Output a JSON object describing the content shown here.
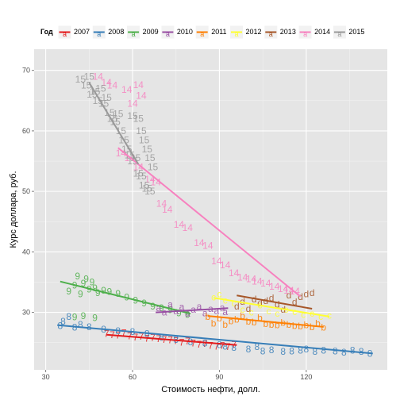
{
  "chart_data": {
    "type": "scatter",
    "title": "",
    "xlabel": "Стоимость нефти, долл.",
    "ylabel": "Курс доллара, руб.",
    "xlim": [
      26,
      148
    ],
    "ylim": [
      20.5,
      73.5
    ],
    "xticks": [
      30,
      60,
      90,
      120
    ],
    "yticks": [
      30,
      40,
      50,
      60,
      70
    ],
    "grid": true,
    "legend": {
      "title": "Год",
      "position": "top"
    },
    "series": [
      {
        "name": "2007",
        "color": "#E41A1C",
        "glyph": "7",
        "points": [
          [
            51,
            26.5
          ],
          [
            53,
            26.3
          ],
          [
            55,
            26.2
          ],
          [
            57,
            26.6
          ],
          [
            59,
            26.1
          ],
          [
            61,
            25.9
          ],
          [
            63,
            26.0
          ],
          [
            65,
            25.7
          ],
          [
            67,
            25.8
          ],
          [
            69,
            25.6
          ],
          [
            71,
            25.5
          ],
          [
            73,
            25.4
          ],
          [
            75,
            25.3
          ],
          [
            77,
            25.0
          ],
          [
            79,
            25.2
          ],
          [
            81,
            24.9
          ],
          [
            83,
            24.7
          ],
          [
            85,
            24.8
          ],
          [
            87,
            24.5
          ],
          [
            89,
            24.4
          ],
          [
            91,
            24.5
          ],
          [
            93,
            24.3
          ],
          [
            95,
            24.6
          ]
        ],
        "trend": [
          [
            51,
            26.3
          ],
          [
            96,
            24.6
          ]
        ]
      },
      {
        "name": "2008",
        "color": "#377EB8",
        "glyph": "8",
        "points": [
          [
            35,
            27.8
          ],
          [
            36,
            28.5
          ],
          [
            38,
            29.3
          ],
          [
            40,
            27.5
          ],
          [
            42,
            28.0
          ],
          [
            45,
            27.6
          ],
          [
            50,
            27.2
          ],
          [
            55,
            26.9
          ],
          [
            60,
            26.8
          ],
          [
            65,
            26.5
          ],
          [
            70,
            25.9
          ],
          [
            75,
            25.5
          ],
          [
            80,
            25.1
          ],
          [
            85,
            24.9
          ],
          [
            90,
            24.6
          ],
          [
            92,
            24.4
          ],
          [
            95,
            24.2
          ],
          [
            100,
            23.9
          ],
          [
            103,
            24.3
          ],
          [
            105,
            23.6
          ],
          [
            108,
            23.8
          ],
          [
            112,
            23.5
          ],
          [
            115,
            23.6
          ],
          [
            118,
            23.7
          ],
          [
            120,
            23.9
          ],
          [
            123,
            23.5
          ],
          [
            126,
            23.7
          ],
          [
            130,
            23.6
          ],
          [
            133,
            23.4
          ],
          [
            136,
            23.7
          ],
          [
            139,
            23.5
          ],
          [
            142,
            23.2
          ]
        ],
        "trend": [
          [
            34,
            27.9
          ],
          [
            143,
            23.2
          ]
        ]
      },
      {
        "name": "2009",
        "color": "#4DAF4A",
        "glyph": "9",
        "points": [
          [
            38,
            33.5
          ],
          [
            40,
            34.5
          ],
          [
            41,
            36.0
          ],
          [
            42,
            33.0
          ],
          [
            43,
            34.8
          ],
          [
            44,
            35.5
          ],
          [
            45,
            33.8
          ],
          [
            46,
            35.0
          ],
          [
            47,
            34.0
          ],
          [
            48,
            33.2
          ],
          [
            50,
            33.6
          ],
          [
            52,
            33.4
          ],
          [
            55,
            33.1
          ],
          [
            58,
            32.5
          ],
          [
            61,
            32.0
          ],
          [
            64,
            31.5
          ],
          [
            67,
            31.0
          ],
          [
            70,
            30.7
          ],
          [
            73,
            30.4
          ],
          [
            76,
            29.9
          ],
          [
            79,
            29.6
          ],
          [
            40,
            29.2
          ],
          [
            43,
            29.4
          ],
          [
            47,
            29.1
          ]
        ],
        "trend": [
          [
            35,
            35.1
          ],
          [
            80,
            29.8
          ]
        ]
      },
      {
        "name": "2010",
        "color": "#984EA3",
        "glyph": "a",
        "points": [
          [
            69,
            30.7
          ],
          [
            71,
            30.0
          ],
          [
            73,
            31.3
          ],
          [
            75,
            30.2
          ],
          [
            77,
            30.9
          ],
          [
            79,
            29.8
          ],
          [
            81,
            30.5
          ],
          [
            83,
            31.0
          ],
          [
            85,
            29.9
          ],
          [
            87,
            30.6
          ],
          [
            89,
            30.3
          ],
          [
            91,
            30.8
          ],
          [
            92,
            30.1
          ]
        ],
        "trend": [
          [
            68,
            30.0
          ],
          [
            93,
            30.7
          ]
        ]
      },
      {
        "name": "2011",
        "color": "#FF7F00",
        "glyph": "b",
        "points": [
          [
            86,
            29.3
          ],
          [
            88,
            28.2
          ],
          [
            90,
            29.0
          ],
          [
            92,
            28.0
          ],
          [
            94,
            28.6
          ],
          [
            96,
            28.8
          ],
          [
            98,
            29.4
          ],
          [
            100,
            28.5
          ],
          [
            102,
            28.4
          ],
          [
            104,
            29.1
          ],
          [
            106,
            28.1
          ],
          [
            108,
            28.0
          ],
          [
            110,
            27.9
          ],
          [
            112,
            28.3
          ],
          [
            114,
            28.0
          ],
          [
            116,
            27.8
          ],
          [
            118,
            27.7
          ],
          [
            120,
            27.9
          ],
          [
            122,
            27.6
          ],
          [
            124,
            28.2
          ],
          [
            126,
            27.5
          ]
        ],
        "trend": [
          [
            86,
            29.4
          ],
          [
            126,
            27.6
          ]
        ]
      },
      {
        "name": "2012",
        "color": "#FFFF33",
        "glyph": "c",
        "points": [
          [
            88,
            32.5
          ],
          [
            90,
            33.0
          ],
          [
            92,
            32.0
          ],
          [
            95,
            31.5
          ],
          [
            98,
            30.5
          ],
          [
            101,
            30.0
          ],
          [
            104,
            31.2
          ],
          [
            107,
            30.2
          ],
          [
            110,
            29.8
          ],
          [
            113,
            30.5
          ],
          [
            116,
            30.1
          ],
          [
            119,
            29.6
          ],
          [
            122,
            29.8
          ],
          [
            125,
            29.3
          ],
          [
            128,
            29.5
          ]
        ],
        "trend": [
          [
            88,
            32.4
          ],
          [
            128,
            29.3
          ]
        ]
      },
      {
        "name": "2013",
        "color": "#A65628",
        "glyph": "d",
        "points": [
          [
            96,
            31.0
          ],
          [
            98,
            31.8
          ],
          [
            100,
            30.6
          ],
          [
            102,
            32.2
          ],
          [
            104,
            31.5
          ],
          [
            106,
            31.9
          ],
          [
            108,
            32.4
          ],
          [
            110,
            31.3
          ],
          [
            112,
            30.5
          ],
          [
            114,
            32.8
          ],
          [
            116,
            31.7
          ],
          [
            118,
            32.6
          ],
          [
            120,
            33.0
          ],
          [
            122,
            33.2
          ]
        ],
        "trend": [
          [
            96,
            32.8
          ],
          [
            122,
            30.6
          ]
        ]
      },
      {
        "name": "2014",
        "color": "#F781BF",
        "glyph": "14",
        "points": [
          [
            48,
            69.0
          ],
          [
            51,
            68.0
          ],
          [
            53,
            67.5
          ],
          [
            58,
            66.8
          ],
          [
            62,
            67.6
          ],
          [
            60,
            64.5
          ],
          [
            63,
            65.8
          ],
          [
            56,
            56.3
          ],
          [
            59,
            55.5
          ],
          [
            62,
            54.0
          ],
          [
            66,
            52.0
          ],
          [
            68,
            51.5
          ],
          [
            70,
            48.0
          ],
          [
            72,
            47.0
          ],
          [
            76,
            44.5
          ],
          [
            79,
            44.0
          ],
          [
            83,
            41.5
          ],
          [
            86,
            41.0
          ],
          [
            89,
            38.5
          ],
          [
            92,
            37.8
          ],
          [
            95,
            36.5
          ],
          [
            98,
            35.8
          ],
          [
            101,
            35.5
          ],
          [
            103,
            35.1
          ],
          [
            106,
            34.8
          ],
          [
            109,
            34.3
          ],
          [
            112,
            33.9
          ],
          [
            114,
            33.6
          ],
          [
            116,
            33.5
          ]
        ],
        "trend": [
          [
            55,
            57.2
          ],
          [
            118,
            32.6
          ]
        ]
      },
      {
        "name": "2015",
        "color": "#999999",
        "glyph": "15",
        "points": [
          [
            42,
            68.5
          ],
          [
            44,
            67.5
          ],
          [
            45,
            69.0
          ],
          [
            46,
            66.0
          ],
          [
            47,
            66.5
          ],
          [
            48,
            65.0
          ],
          [
            49,
            67.0
          ],
          [
            50,
            64.5
          ],
          [
            51,
            65.5
          ],
          [
            52,
            63.0
          ],
          [
            53,
            62.0
          ],
          [
            54,
            61.5
          ],
          [
            55,
            62.8
          ],
          [
            56,
            60.0
          ],
          [
            57,
            58.5
          ],
          [
            58,
            57.0
          ],
          [
            59,
            56.0
          ],
          [
            60,
            55.0
          ],
          [
            61,
            55.5
          ],
          [
            62,
            53.0
          ],
          [
            63,
            52.5
          ],
          [
            64,
            51.0
          ],
          [
            65,
            50.5
          ],
          [
            66,
            50.0
          ],
          [
            62,
            62.0
          ],
          [
            63,
            60.0
          ],
          [
            64,
            58.5
          ],
          [
            65,
            57.0
          ],
          [
            66,
            55.5
          ],
          [
            67,
            54.0
          ],
          [
            60,
            62.5
          ]
        ],
        "trend": [
          [
            45,
            68.0
          ],
          [
            62,
            54.5
          ]
        ]
      }
    ]
  }
}
